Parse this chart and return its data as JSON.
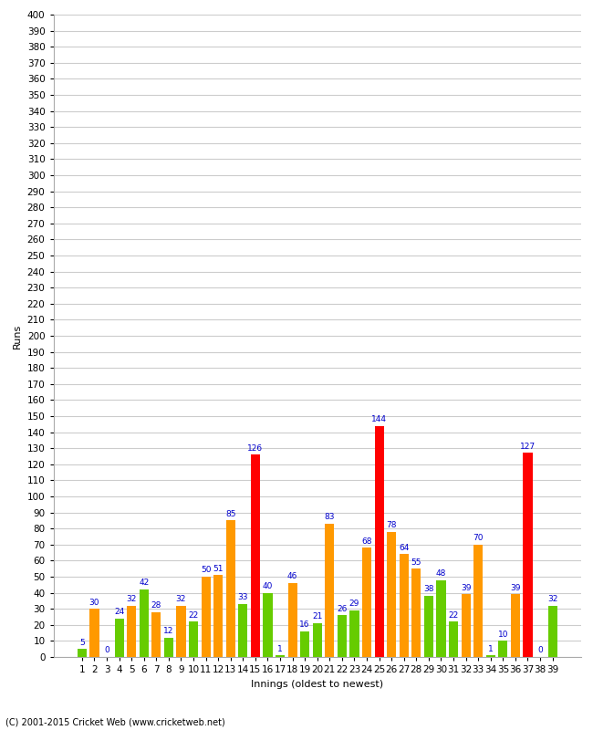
{
  "innings": [
    1,
    2,
    3,
    4,
    5,
    6,
    7,
    8,
    9,
    10,
    11,
    12,
    13,
    14,
    15,
    16,
    17,
    18,
    19,
    20,
    21,
    22,
    23,
    24,
    25,
    26,
    27,
    28,
    29,
    30,
    31,
    32,
    33,
    34,
    35,
    36,
    37,
    38,
    39
  ],
  "values": [
    5,
    30,
    0,
    24,
    32,
    42,
    28,
    12,
    32,
    22,
    50,
    51,
    85,
    33,
    126,
    40,
    1,
    46,
    16,
    21,
    83,
    26,
    29,
    68,
    144,
    78,
    64,
    55,
    38,
    48,
    22,
    39,
    70,
    1,
    10,
    39,
    127,
    0,
    32
  ],
  "colors": [
    "#66cc00",
    "#ff9900",
    "#ff0000",
    "#66cc00",
    "#ff9900",
    "#66cc00",
    "#ff9900",
    "#66cc00",
    "#ff9900",
    "#66cc00",
    "#ff9900",
    "#ff9900",
    "#ff9900",
    "#66cc00",
    "#ff0000",
    "#66cc00",
    "#66cc00",
    "#ff9900",
    "#66cc00",
    "#66cc00",
    "#ff9900",
    "#66cc00",
    "#66cc00",
    "#ff9900",
    "#ff0000",
    "#ff9900",
    "#ff9900",
    "#ff9900",
    "#66cc00",
    "#66cc00",
    "#66cc00",
    "#ff9900",
    "#ff9900",
    "#66cc00",
    "#66cc00",
    "#ff9900",
    "#ff0000",
    "#66cc00",
    "#66cc00"
  ],
  "ylabel": "Runs",
  "xlabel": "Innings (oldest to newest)",
  "ylim": [
    0,
    400
  ],
  "yticks": [
    0,
    10,
    20,
    30,
    40,
    50,
    60,
    70,
    80,
    90,
    100,
    110,
    120,
    130,
    140,
    150,
    160,
    170,
    180,
    190,
    200,
    210,
    220,
    230,
    240,
    250,
    260,
    270,
    280,
    290,
    300,
    310,
    320,
    330,
    340,
    350,
    360,
    370,
    380,
    390,
    400
  ],
  "footer": "(C) 2001-2015 Cricket Web (www.cricketweb.net)",
  "background_color": "#ffffff",
  "grid_color": "#cccccc",
  "label_color": "#0000cc",
  "bar_label_fontsize": 6.5,
  "tick_fontsize": 7.5,
  "ylabel_fontsize": 8,
  "xlabel_fontsize": 8
}
